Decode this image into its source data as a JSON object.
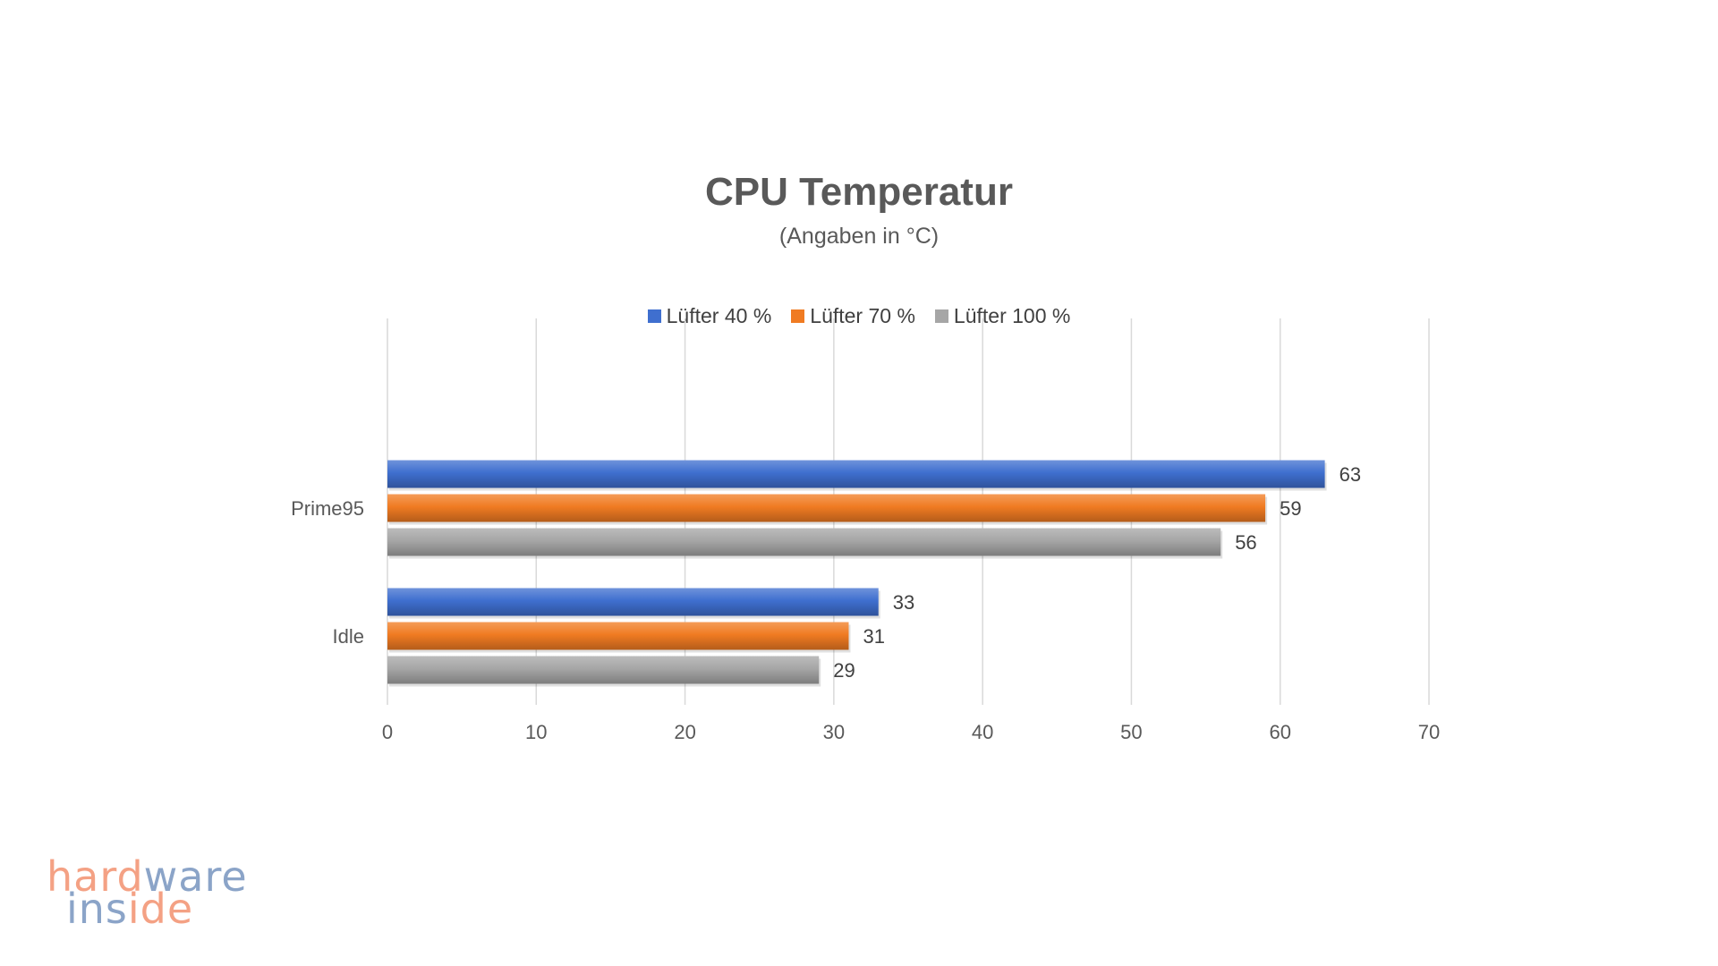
{
  "chart_data": {
    "type": "bar",
    "orientation": "horizontal",
    "title": "CPU Temperatur",
    "subtitle": "(Angaben in °C)",
    "categories": [
      "Prime95",
      "Idle"
    ],
    "series": [
      {
        "name": "Lüfter 40 %",
        "values": [
          63,
          33
        ],
        "color": "#3f6fcf"
      },
      {
        "name": "Lüfter 70 %",
        "values": [
          59,
          31
        ],
        "color": "#f07b22"
      },
      {
        "name": "Lüfter 100 %",
        "values": [
          56,
          29
        ],
        "color": "#a6a6a6"
      }
    ],
    "xlim": [
      0,
      70
    ],
    "xticks": [
      "0",
      "10",
      "20",
      "30",
      "40",
      "50",
      "60",
      "70"
    ],
    "grid": "vertical",
    "legend_position": "top-center",
    "data_labels": true
  },
  "logo": {
    "line1_part1": "hard",
    "line1_part2": "ware",
    "line2_part1": "ins",
    "line2_part2": "ide"
  }
}
